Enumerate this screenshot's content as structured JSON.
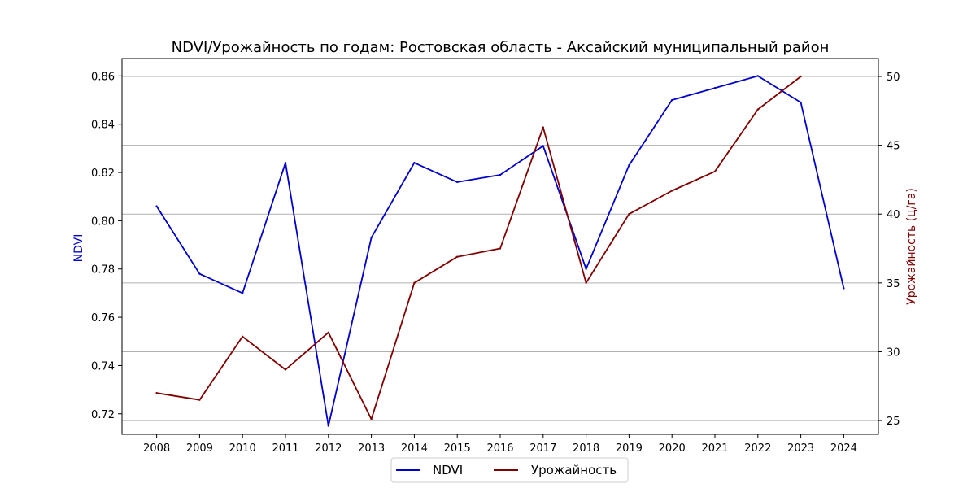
{
  "chart_data": {
    "type": "line",
    "title": "NDVI/Урожайность по годам: Ростовская область - Аксайский муниципальный район",
    "x": [
      "2008",
      "2009",
      "2010",
      "2011",
      "2012",
      "2013",
      "2014",
      "2015",
      "2016",
      "2017",
      "2018",
      "2019",
      "2020",
      "2021",
      "2022",
      "2023",
      "2024"
    ],
    "xlabel": "",
    "y_left": {
      "label": "NDVI",
      "color": "#0000cc",
      "ticks": [
        "0.72",
        "0.74",
        "0.76",
        "0.78",
        "0.80",
        "0.82",
        "0.84",
        "0.86"
      ],
      "ylim": [
        0.7115,
        0.8672
      ]
    },
    "y_right": {
      "label": "Урожайность (ц/га)",
      "color": "#800000",
      "ticks": [
        "25",
        "30",
        "35",
        "40",
        "45",
        "50"
      ],
      "ylim": [
        24.0,
        51.3
      ]
    },
    "series": [
      {
        "name": "NDVI",
        "axis": "left",
        "color": "#0000cc",
        "values": [
          0.806,
          0.778,
          0.77,
          0.824,
          0.715,
          0.793,
          0.824,
          0.816,
          0.819,
          0.831,
          0.78,
          0.823,
          0.85,
          0.855,
          0.86,
          0.849,
          0.772
        ]
      },
      {
        "name": "Урожайность",
        "axis": "right",
        "color": "#800000",
        "values": [
          27.0,
          26.5,
          31.1,
          28.7,
          31.4,
          25.1,
          35.0,
          36.9,
          37.5,
          46.3,
          35.0,
          40.0,
          41.7,
          43.1,
          47.6,
          50.0,
          null
        ]
      }
    ],
    "grid": "horizontal lines at right-axis ticks",
    "legend": {
      "placement": "bottom-center",
      "entries": [
        "NDVI",
        "Урожайность"
      ]
    }
  }
}
